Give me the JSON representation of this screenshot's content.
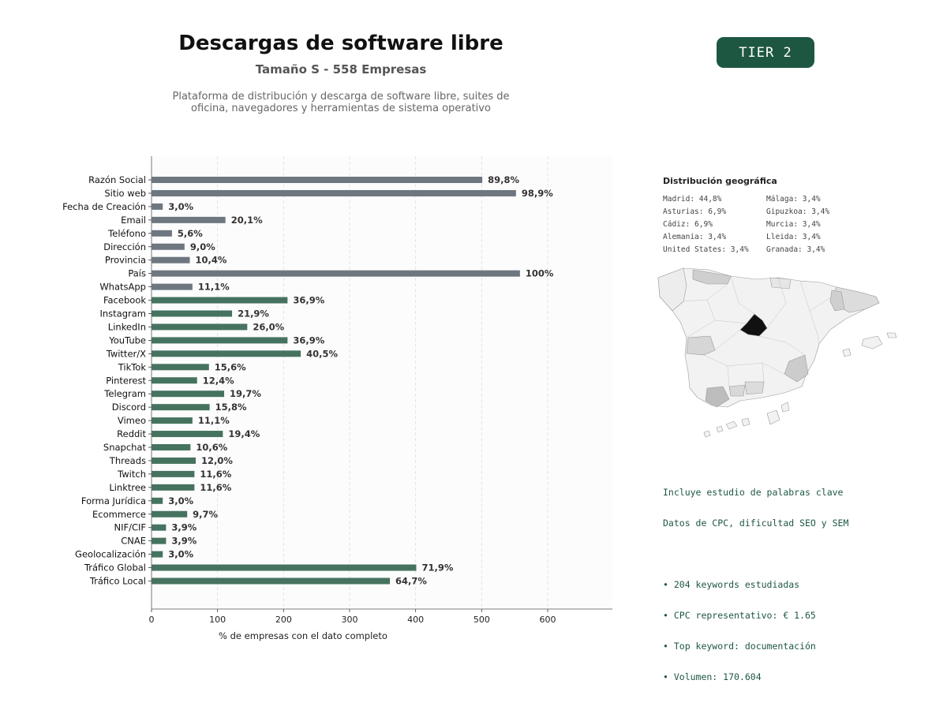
{
  "header": {
    "title": "Descargas de software libre",
    "subtitle": "Tamaño S - 558 Empresas",
    "description_line1": "Plataforma de distribución y descarga de software libre, suites de",
    "description_line2": "oficina, navegadores y herramientas de sistema operativo",
    "tier_label": "TIER 2"
  },
  "chart_data": {
    "type": "bar",
    "orientation": "horizontal",
    "categories": [
      "Razón Social",
      "Sitio web",
      "Fecha de Creación",
      "Email",
      "Teléfono",
      "Dirección",
      "Provincia",
      "País",
      "WhatsApp",
      "Facebook",
      "Instagram",
      "LinkedIn",
      "YouTube",
      "Twitter/X",
      "TikTok",
      "Pinterest",
      "Telegram",
      "Discord",
      "Vimeo",
      "Reddit",
      "Snapchat",
      "Threads",
      "Twitch",
      "Linktree",
      "Forma Jurídica",
      "Ecommerce",
      "NIF/CIF",
      "CNAE",
      "Geolocalización",
      "Tráfico Global",
      "Tráfico Local"
    ],
    "values": [
      501,
      552,
      17,
      112,
      31,
      50,
      58,
      558,
      62,
      206,
      122,
      145,
      206,
      226,
      87,
      69,
      110,
      88,
      62,
      108,
      59,
      67,
      65,
      65,
      17,
      54,
      22,
      22,
      17,
      401,
      361
    ],
    "labels": [
      "89,8%",
      "98,9%",
      "3,0%",
      "20,1%",
      "5,6%",
      "9,0%",
      "10,4%",
      "100%",
      "11,1%",
      "36,9%",
      "21,9%",
      "26,0%",
      "36,9%",
      "40,5%",
      "15,6%",
      "12,4%",
      "19,7%",
      "15,8%",
      "11,1%",
      "19,4%",
      "10,6%",
      "12,0%",
      "11,6%",
      "11,6%",
      "3,0%",
      "9,7%",
      "3,9%",
      "3,9%",
      "3,0%",
      "71,9%",
      "64,7%"
    ],
    "group": [
      "base",
      "base",
      "base",
      "base",
      "base",
      "base",
      "base",
      "base",
      "base",
      "social",
      "social",
      "social",
      "social",
      "social",
      "social",
      "social",
      "social",
      "social",
      "social",
      "social",
      "social",
      "social",
      "social",
      "social",
      "extra",
      "extra",
      "extra",
      "extra",
      "extra",
      "extra",
      "extra"
    ],
    "colors": {
      "base": "#6e7780",
      "social": "#46735f",
      "extra": "#46735f"
    },
    "xlabel": "% de empresas con el dato completo",
    "ylabel": "",
    "xlim": [
      0,
      698
    ],
    "xticks": [
      0,
      100,
      200,
      300,
      400,
      500,
      600
    ],
    "grid": "vertical-dashed"
  },
  "geo": {
    "title": "Distribución geográfica",
    "items": [
      "Madrid: 44,8%",
      "Asturias: 6,9%",
      "Cádiz: 6,9%",
      "Alemania: 3,4%",
      "United States: 3,4%",
      "Málaga: 3,4%",
      "Gipuzkoa: 3,4%",
      "Murcia: 3,4%",
      "Lleida: 3,4%",
      "Granada: 3,4%"
    ]
  },
  "keywords": {
    "line1": "Incluye estudio de palabras clave",
    "line2": "Datos de CPC, dificultad SEO y SEM",
    "bullet1": "• 204 keywords estudiadas",
    "bullet2": "• CPC representativo: € 1.65",
    "bullet3": "• Top keyword: documentación",
    "bullet4": "• Volumen: 170.604"
  }
}
